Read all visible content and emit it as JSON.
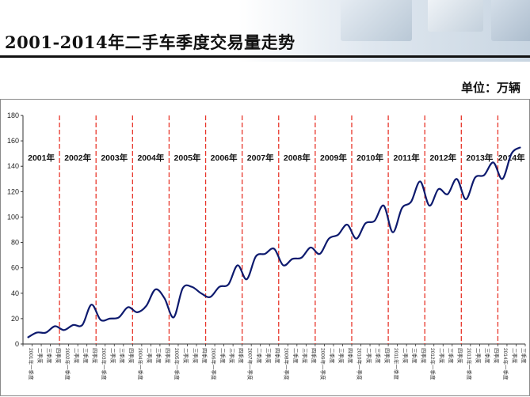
{
  "title": "2001-2014年二手车季度交易量走势",
  "unit": "单位：万辆",
  "chart_data": {
    "type": "line",
    "title": "2001-2014年二手车季度交易量走势",
    "ylabel": "",
    "xlabel": "",
    "ylim": [
      0,
      180
    ],
    "yticks": [
      0,
      20,
      40,
      60,
      80,
      100,
      120,
      140,
      160,
      180
    ],
    "grid": false,
    "legend": "none",
    "year_labels": [
      "2001年",
      "2002年",
      "2003年",
      "2004年",
      "2005年",
      "2006年",
      "2007年",
      "2008年",
      "2009年",
      "2010年",
      "2011年",
      "2012年",
      "2013年",
      "2014年"
    ],
    "categories": [
      "2001年一季度",
      "二季度",
      "三季度",
      "四季度",
      "2002年一季度",
      "二季度",
      "三季度",
      "四季度",
      "2003年一季度",
      "二季度",
      "三季度",
      "四季度",
      "2004年一季度",
      "二季度",
      "三季度",
      "四季度",
      "2005年一季度",
      "二季度",
      "三季度",
      "四季度",
      "2006年一季度",
      "二季度",
      "三季度",
      "四季度",
      "2007年一季度",
      "二季度",
      "三季度",
      "四季度",
      "2008年一季度",
      "二季度",
      "三季度",
      "四季度",
      "2009年一季度",
      "二季度",
      "三季度",
      "四季度",
      "2010年一季度",
      "二季度",
      "三季度",
      "四季度",
      "2011年一季度",
      "二季度",
      "三季度",
      "四季度",
      "2012年一季度",
      "二季度",
      "三季度",
      "四季度",
      "2013年一季度",
      "二季度",
      "三季度",
      "四季度",
      "2014年一季度",
      "二季度",
      "三季度"
    ],
    "series": [
      {
        "color": "#0d1a6e",
        "values": [
          5,
          9,
          9,
          14,
          11,
          15,
          15,
          31,
          19,
          20,
          21,
          29,
          25,
          30,
          43,
          36,
          21,
          44,
          45,
          40,
          37,
          45,
          47,
          62,
          51,
          69,
          71,
          75,
          62,
          67,
          68,
          76,
          71,
          83,
          86,
          94,
          83,
          95,
          97,
          109,
          88,
          107,
          112,
          128,
          109,
          122,
          118,
          130,
          114,
          131,
          133,
          143,
          130,
          150,
          155
        ]
      }
    ],
    "dividers_after_quarter": [
      4,
      8,
      12,
      16,
      20,
      24,
      28,
      32,
      36,
      40,
      44,
      48,
      52
    ],
    "divider_color": "#e8362b"
  }
}
